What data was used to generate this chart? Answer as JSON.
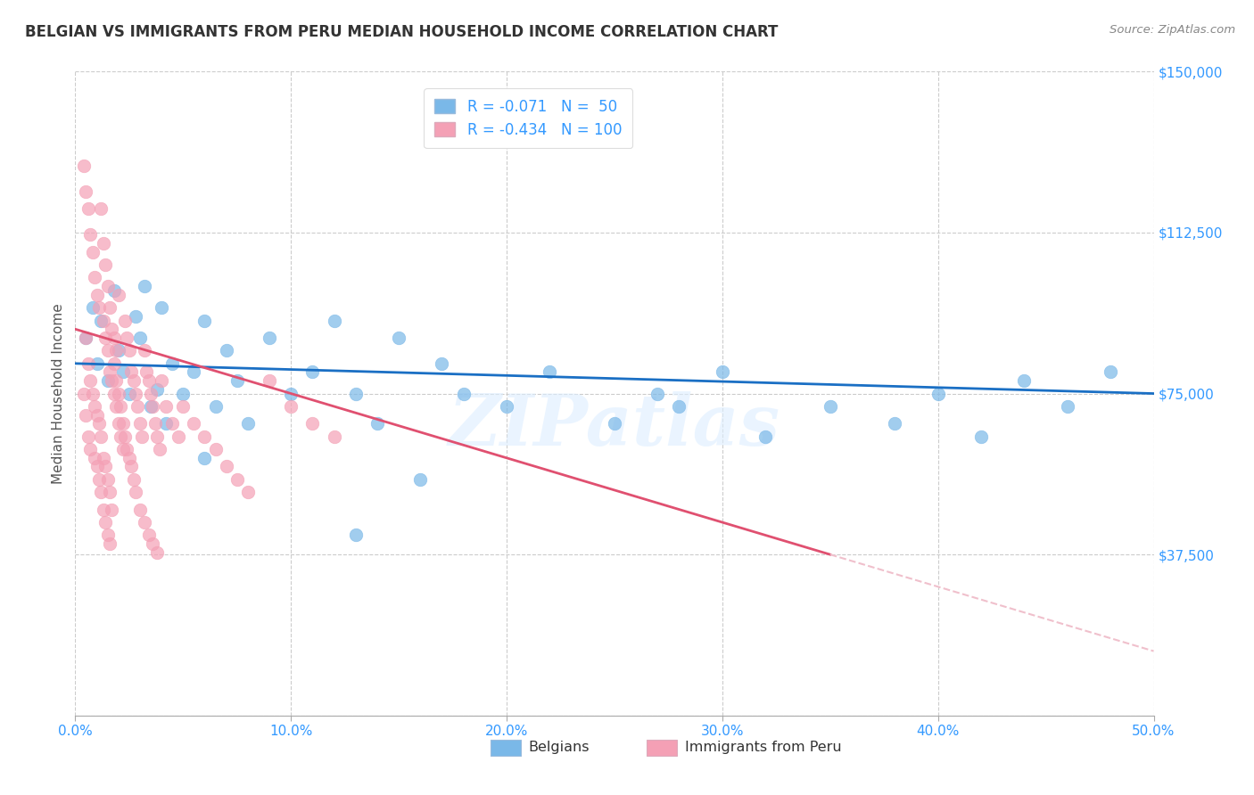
{
  "title": "BELGIAN VS IMMIGRANTS FROM PERU MEDIAN HOUSEHOLD INCOME CORRELATION CHART",
  "source": "Source: ZipAtlas.com",
  "ylabel": "Median Household Income",
  "yticks": [
    0,
    37500,
    75000,
    112500,
    150000
  ],
  "ytick_labels": [
    "",
    "$37,500",
    "$75,000",
    "$112,500",
    "$150,000"
  ],
  "xlim": [
    0.0,
    0.5
  ],
  "ylim": [
    0,
    150000
  ],
  "watermark": "ZIPatlas",
  "legend_label1": "Belgians",
  "legend_label2": "Immigrants from Peru",
  "r1": -0.071,
  "n1": 50,
  "r2": -0.434,
  "n2": 100,
  "color_blue": "#7ab8e8",
  "color_pink": "#f4a0b5",
  "trendline1_color": "#1a6fc4",
  "trendline2_color": "#e05070",
  "trendline2_dashed_color": "#f0c0cc",
  "blue_scatter": [
    [
      0.005,
      88000
    ],
    [
      0.008,
      95000
    ],
    [
      0.01,
      82000
    ],
    [
      0.012,
      92000
    ],
    [
      0.015,
      78000
    ],
    [
      0.018,
      99000
    ],
    [
      0.02,
      85000
    ],
    [
      0.022,
      80000
    ],
    [
      0.025,
      75000
    ],
    [
      0.028,
      93000
    ],
    [
      0.03,
      88000
    ],
    [
      0.032,
      100000
    ],
    [
      0.035,
      72000
    ],
    [
      0.038,
      76000
    ],
    [
      0.04,
      95000
    ],
    [
      0.042,
      68000
    ],
    [
      0.045,
      82000
    ],
    [
      0.05,
      75000
    ],
    [
      0.055,
      80000
    ],
    [
      0.06,
      92000
    ],
    [
      0.065,
      72000
    ],
    [
      0.07,
      85000
    ],
    [
      0.075,
      78000
    ],
    [
      0.08,
      68000
    ],
    [
      0.09,
      88000
    ],
    [
      0.1,
      75000
    ],
    [
      0.11,
      80000
    ],
    [
      0.12,
      92000
    ],
    [
      0.13,
      75000
    ],
    [
      0.14,
      68000
    ],
    [
      0.15,
      88000
    ],
    [
      0.17,
      82000
    ],
    [
      0.18,
      75000
    ],
    [
      0.2,
      72000
    ],
    [
      0.22,
      80000
    ],
    [
      0.25,
      68000
    ],
    [
      0.27,
      75000
    ],
    [
      0.28,
      72000
    ],
    [
      0.3,
      80000
    ],
    [
      0.32,
      65000
    ],
    [
      0.35,
      72000
    ],
    [
      0.38,
      68000
    ],
    [
      0.4,
      75000
    ],
    [
      0.42,
      65000
    ],
    [
      0.44,
      78000
    ],
    [
      0.46,
      72000
    ],
    [
      0.48,
      80000
    ],
    [
      0.13,
      42000
    ],
    [
      0.06,
      60000
    ],
    [
      0.16,
      55000
    ]
  ],
  "pink_scatter": [
    [
      0.004,
      128000
    ],
    [
      0.005,
      122000
    ],
    [
      0.006,
      118000
    ],
    [
      0.007,
      112000
    ],
    [
      0.008,
      108000
    ],
    [
      0.009,
      102000
    ],
    [
      0.01,
      98000
    ],
    [
      0.011,
      95000
    ],
    [
      0.012,
      118000
    ],
    [
      0.013,
      110000
    ],
    [
      0.014,
      105000
    ],
    [
      0.015,
      100000
    ],
    [
      0.016,
      95000
    ],
    [
      0.017,
      90000
    ],
    [
      0.018,
      88000
    ],
    [
      0.019,
      85000
    ],
    [
      0.005,
      88000
    ],
    [
      0.006,
      82000
    ],
    [
      0.007,
      78000
    ],
    [
      0.008,
      75000
    ],
    [
      0.009,
      72000
    ],
    [
      0.01,
      70000
    ],
    [
      0.011,
      68000
    ],
    [
      0.012,
      65000
    ],
    [
      0.013,
      92000
    ],
    [
      0.014,
      88000
    ],
    [
      0.015,
      85000
    ],
    [
      0.016,
      80000
    ],
    [
      0.017,
      78000
    ],
    [
      0.018,
      75000
    ],
    [
      0.019,
      72000
    ],
    [
      0.02,
      98000
    ],
    [
      0.02,
      68000
    ],
    [
      0.021,
      65000
    ],
    [
      0.022,
      62000
    ],
    [
      0.023,
      92000
    ],
    [
      0.024,
      88000
    ],
    [
      0.025,
      85000
    ],
    [
      0.026,
      80000
    ],
    [
      0.027,
      78000
    ],
    [
      0.028,
      75000
    ],
    [
      0.029,
      72000
    ],
    [
      0.03,
      68000
    ],
    [
      0.031,
      65000
    ],
    [
      0.032,
      85000
    ],
    [
      0.033,
      80000
    ],
    [
      0.034,
      78000
    ],
    [
      0.035,
      75000
    ],
    [
      0.036,
      72000
    ],
    [
      0.037,
      68000
    ],
    [
      0.038,
      65000
    ],
    [
      0.039,
      62000
    ],
    [
      0.04,
      78000
    ],
    [
      0.042,
      72000
    ],
    [
      0.045,
      68000
    ],
    [
      0.048,
      65000
    ],
    [
      0.05,
      72000
    ],
    [
      0.055,
      68000
    ],
    [
      0.06,
      65000
    ],
    [
      0.065,
      62000
    ],
    [
      0.07,
      58000
    ],
    [
      0.075,
      55000
    ],
    [
      0.08,
      52000
    ],
    [
      0.09,
      78000
    ],
    [
      0.1,
      72000
    ],
    [
      0.11,
      68000
    ],
    [
      0.12,
      65000
    ],
    [
      0.013,
      60000
    ],
    [
      0.014,
      58000
    ],
    [
      0.015,
      55000
    ],
    [
      0.016,
      52000
    ],
    [
      0.017,
      48000
    ],
    [
      0.018,
      82000
    ],
    [
      0.019,
      78000
    ],
    [
      0.02,
      75000
    ],
    [
      0.021,
      72000
    ],
    [
      0.022,
      68000
    ],
    [
      0.023,
      65000
    ],
    [
      0.024,
      62000
    ],
    [
      0.025,
      60000
    ],
    [
      0.026,
      58000
    ],
    [
      0.027,
      55000
    ],
    [
      0.028,
      52000
    ],
    [
      0.03,
      48000
    ],
    [
      0.004,
      75000
    ],
    [
      0.005,
      70000
    ],
    [
      0.006,
      65000
    ],
    [
      0.007,
      62000
    ],
    [
      0.009,
      60000
    ],
    [
      0.01,
      58000
    ],
    [
      0.011,
      55000
    ],
    [
      0.012,
      52000
    ],
    [
      0.013,
      48000
    ],
    [
      0.014,
      45000
    ],
    [
      0.015,
      42000
    ],
    [
      0.016,
      40000
    ],
    [
      0.032,
      45000
    ],
    [
      0.034,
      42000
    ],
    [
      0.036,
      40000
    ],
    [
      0.038,
      38000
    ]
  ]
}
